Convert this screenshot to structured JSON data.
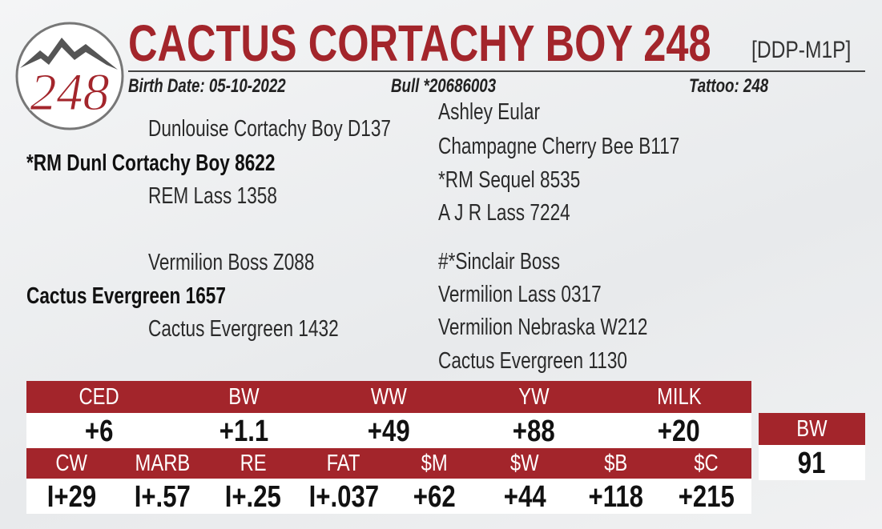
{
  "logo": "248",
  "header": {
    "title": "CACTUS CORTACHY BOY 248",
    "tag": "[DDP-M1P]"
  },
  "info": {
    "birth_date": "Birth Date: 05-10-2022",
    "registration": "Bull *20686003",
    "tattoo": "Tattoo: 248"
  },
  "pedigree": {
    "sire": "*RM Dunl Cortachy Boy 8622",
    "sire_sire": "Dunlouise Cortachy Boy D137",
    "sire_dam": "REM Lass 1358",
    "dam": "Cactus Evergreen 1657",
    "dam_sire": "Vermilion Boss Z088",
    "dam_dam": "Cactus Evergreen 1432",
    "ancestors": [
      "Ashley Eular",
      "Champagne Cherry Bee B117",
      "*RM Sequel 8535",
      "A J R Lass 7224",
      "#*Sinclair Boss",
      "Vermilion Lass 0317",
      "Vermilion Nebraska W212",
      "Cactus Evergreen 1130"
    ]
  },
  "epd": {
    "row1": {
      "headers": [
        "CED",
        "BW",
        "WW",
        "YW",
        "MILK"
      ],
      "values": [
        "+6",
        "+1.1",
        "+49",
        "+88",
        "+20"
      ]
    },
    "row2": {
      "headers": [
        "CW",
        "MARB",
        "RE",
        "FAT",
        "$M",
        "$W",
        "$B",
        "$C"
      ],
      "values": [
        "I+29",
        "I+.57",
        "I+.25",
        "I+.037",
        "+62",
        "+44",
        "+118",
        "+215"
      ]
    },
    "side": {
      "header": "BW",
      "value": "91"
    }
  }
}
